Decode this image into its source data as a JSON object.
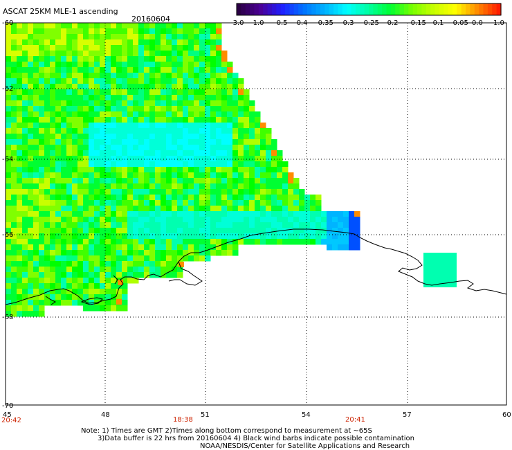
{
  "header": {
    "title": "ASCAT 25KM MLE-1 ascending",
    "date": "20160604"
  },
  "colorbar": {
    "tick_labels": [
      "-3.0",
      "-1.0",
      "-0.5",
      "-0.4",
      "-0.35",
      "-0.3",
      "-0.25",
      "-0.2",
      "-0.15",
      "-0.1",
      "-0.05",
      "0.0",
      "1.0"
    ],
    "colors": [
      "#2a0044",
      "#4b0096",
      "#1f1fff",
      "#0073ff",
      "#00b4ff",
      "#00ffff",
      "#00ffa0",
      "#00ff32",
      "#78ff00",
      "#c8ff00",
      "#ffff00",
      "#ff8c00",
      "#ff1e00"
    ]
  },
  "map": {
    "lat_labels": [
      "-60",
      "-62",
      "-64",
      "-66",
      "-68",
      "-70"
    ],
    "lon_labels": [
      "45",
      "48",
      "51",
      "54",
      "57",
      "60"
    ],
    "time_labels": [
      "20:42",
      "18:38",
      "20:41"
    ],
    "time_color": "#cc2200",
    "coastline_color": "#000000",
    "grid_style": "dotted"
  },
  "notes": {
    "line1": "Note: 1) Times are GMT 2)Times along bottom correspond to measurement at ~65S",
    "line2": "3)Data buffer is 22 hrs from 20160604 4) Black wind barbs indicate possible contamination",
    "line3": "NOAA/NESDIS/Center for Satellite Applications and Research"
  }
}
